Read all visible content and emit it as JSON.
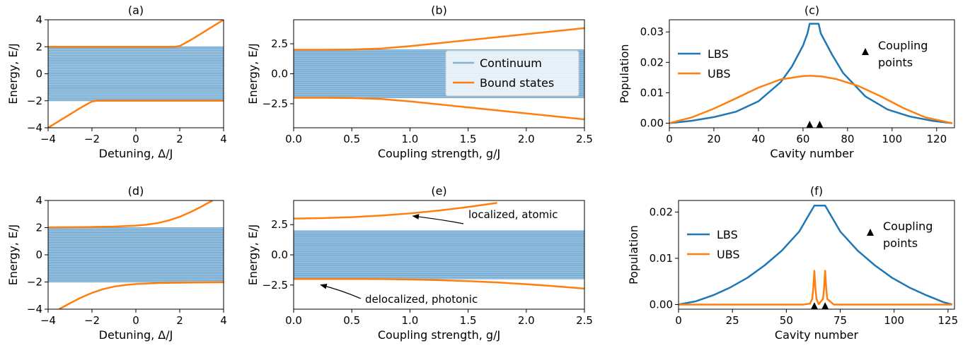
{
  "colors": {
    "continuum": "#1f77b4",
    "bound": "#ff7f0e",
    "lbs": "#1f77b4",
    "ubs": "#ff7f0e",
    "marker": "#000000"
  },
  "chart_data": [
    {
      "id": "a",
      "type": "line",
      "title": "(a)",
      "xlabel": "Detuning, Δ/J",
      "ylabel": "Energy, E/J",
      "xlim": [
        -4,
        4
      ],
      "ylim": [
        -4,
        4
      ],
      "xticks": [
        -4,
        -2,
        0,
        2,
        4
      ],
      "yticks": [
        -4,
        -2,
        0,
        2,
        4
      ],
      "xtick_labels": [
        "−4",
        "−2",
        "0",
        "2",
        "4"
      ],
      "ytick_labels": [
        "−4",
        "−2",
        "0",
        "2",
        "4"
      ],
      "continuum_band": [
        -2,
        2
      ],
      "series": [
        {
          "x": [
            -4,
            -3.5,
            -3,
            -2.6,
            -2.3,
            -2.1,
            -2.0,
            -1.8,
            4
          ],
          "y": [
            -4,
            -3.5,
            -3,
            -2.6,
            -2.32,
            -2.14,
            -2.06,
            -2.0,
            -2.0
          ]
        },
        {
          "x": [
            -4,
            1.8,
            2.0,
            2.1,
            2.3,
            2.6,
            3,
            3.5,
            4
          ],
          "y": [
            2.0,
            2.0,
            2.06,
            2.14,
            2.32,
            2.6,
            3,
            3.5,
            4
          ]
        }
      ]
    },
    {
      "id": "b",
      "type": "line",
      "title": "(b)",
      "xlabel": "Coupling strength, g/J",
      "ylabel": "Energy, E/J",
      "xlim": [
        0,
        2.5
      ],
      "ylim": [
        -4.5,
        4.5
      ],
      "xticks": [
        0,
        0.5,
        1.0,
        1.5,
        2.0,
        2.5
      ],
      "yticks": [
        -2.5,
        0,
        2.5
      ],
      "xtick_labels": [
        "0.0",
        "0.5",
        "1.0",
        "1.5",
        "2.0",
        "2.5"
      ],
      "ytick_labels": [
        "−2.5",
        "0.0",
        "2.5"
      ],
      "continuum_band": [
        -2,
        2
      ],
      "legend": {
        "position": "center-right",
        "entries": [
          "Continuum",
          "Bound states"
        ]
      },
      "series": [
        {
          "name": "Bound states",
          "x": [
            0,
            0.25,
            0.5,
            0.75,
            1.0,
            1.25,
            1.5,
            1.75,
            2.0,
            2.25,
            2.5
          ],
          "y": [
            2.0,
            2.0,
            2.02,
            2.1,
            2.3,
            2.55,
            2.8,
            3.05,
            3.3,
            3.55,
            3.8
          ]
        },
        {
          "name": "Bound states",
          "x": [
            0,
            0.25,
            0.5,
            0.75,
            1.0,
            1.25,
            1.5,
            1.75,
            2.0,
            2.25,
            2.5
          ],
          "y": [
            -2.0,
            -2.0,
            -2.02,
            -2.1,
            -2.3,
            -2.55,
            -2.8,
            -3.05,
            -3.3,
            -3.55,
            -3.8
          ]
        }
      ]
    },
    {
      "id": "c",
      "type": "line",
      "title": "(c)",
      "xlabel": "Cavity number",
      "ylabel": "Population",
      "xlim": [
        0,
        128
      ],
      "ylim": [
        -0.0015,
        0.034
      ],
      "xticks": [
        0,
        20,
        40,
        60,
        80,
        100,
        120
      ],
      "yticks": [
        0,
        0.01,
        0.02,
        0.03
      ],
      "xtick_labels": [
        "0",
        "20",
        "40",
        "60",
        "80",
        "100",
        "120"
      ],
      "ytick_labels": [
        "0.00",
        "0.01",
        "0.02",
        "0.03"
      ],
      "legend": {
        "position": "upper-left",
        "entries": [
          "LBS",
          "UBS"
        ]
      },
      "annotation": {
        "text_lines": [
          "Coupling",
          "points"
        ]
      },
      "markers": {
        "x": [
          63,
          67.5
        ],
        "y": -0.0006
      },
      "series": [
        {
          "name": "LBS",
          "x": [
            0,
            10,
            20,
            30,
            40,
            50,
            55,
            60,
            62,
            63,
            67,
            68,
            73,
            78,
            88,
            98,
            108,
            118,
            127
          ],
          "y": [
            0.0,
            0.0008,
            0.002,
            0.0038,
            0.0072,
            0.0135,
            0.0186,
            0.0255,
            0.0295,
            0.0327,
            0.0327,
            0.0295,
            0.0226,
            0.0165,
            0.0088,
            0.0045,
            0.0022,
            0.0008,
            0.0
          ]
        },
        {
          "name": "UBS",
          "x": [
            0,
            10,
            20,
            30,
            40,
            50,
            60,
            63,
            68,
            75,
            85,
            95,
            105,
            115,
            127
          ],
          "y": [
            0.0,
            0.0019,
            0.0048,
            0.0082,
            0.0117,
            0.0144,
            0.0155,
            0.0156,
            0.0154,
            0.0145,
            0.0122,
            0.0088,
            0.005,
            0.0019,
            0.0
          ]
        }
      ]
    },
    {
      "id": "d",
      "type": "line",
      "title": "(d)",
      "xlabel": "Detuning, Δ/J",
      "ylabel": "Energy, E/J",
      "xlim": [
        -4,
        4
      ],
      "ylim": [
        -4,
        4
      ],
      "xticks": [
        -4,
        -2,
        0,
        2,
        4
      ],
      "yticks": [
        -4,
        -2,
        0,
        2,
        4
      ],
      "xtick_labels": [
        "−4",
        "−2",
        "0",
        "2",
        "4"
      ],
      "ytick_labels": [
        "−4",
        "−2",
        "0",
        "2",
        "4"
      ],
      "continuum_band": [
        -2,
        2
      ],
      "series": [
        {
          "x": [
            -3.5,
            -3,
            -2.5,
            -2,
            -1.5,
            -1,
            -0.5,
            0,
            1,
            2,
            3,
            4
          ],
          "y": [
            -4.0,
            -3.56,
            -3.15,
            -2.8,
            -2.53,
            -2.34,
            -2.22,
            -2.15,
            -2.08,
            -2.05,
            -2.03,
            -2.02
          ]
        },
        {
          "x": [
            -4,
            -3,
            -2,
            -1,
            0,
            0.5,
            1,
            1.5,
            2,
            2.5,
            3,
            3.5
          ],
          "y": [
            2.02,
            2.03,
            2.05,
            2.08,
            2.15,
            2.22,
            2.34,
            2.53,
            2.8,
            3.15,
            3.56,
            4.0
          ]
        }
      ]
    },
    {
      "id": "e",
      "type": "line",
      "title": "(e)",
      "xlabel": "Coupling strength, g/J",
      "ylabel": "Energy, E/J",
      "xlim": [
        0,
        2.5
      ],
      "ylim": [
        -4.5,
        4.5
      ],
      "xticks": [
        0,
        0.5,
        1.0,
        1.5,
        2.0,
        2.5
      ],
      "yticks": [
        -2.5,
        0,
        2.5
      ],
      "xtick_labels": [
        "0.0",
        "0.5",
        "1.0",
        "1.5",
        "2.0",
        "2.5"
      ],
      "ytick_labels": [
        "−2.5",
        "0.0",
        "2.5"
      ],
      "continuum_band": [
        -2,
        2
      ],
      "annotations": [
        {
          "text": "localized, atomic",
          "arrow_to": [
            1.0,
            3.45
          ]
        },
        {
          "text": "delocalized, photonic",
          "arrow_to": [
            0.22,
            -2.25
          ]
        }
      ],
      "series": [
        {
          "x": [
            0,
            0.25,
            0.5,
            0.75,
            1.0,
            1.25,
            1.5,
            1.75
          ],
          "y": [
            3.0,
            3.04,
            3.12,
            3.25,
            3.43,
            3.67,
            3.96,
            4.3
          ]
        },
        {
          "x": [
            0,
            0.25,
            0.5,
            0.75,
            1.0,
            1.25,
            1.5,
            1.75,
            2.0,
            2.25,
            2.5
          ],
          "y": [
            -2.0,
            -2.0,
            -2.0,
            -2.01,
            -2.04,
            -2.1,
            -2.18,
            -2.29,
            -2.43,
            -2.6,
            -2.8
          ]
        }
      ]
    },
    {
      "id": "f",
      "type": "line",
      "title": "(f)",
      "xlabel": "Cavity number",
      "ylabel": "Population",
      "xlim": [
        0,
        128
      ],
      "ylim": [
        -0.001,
        0.0225
      ],
      "xticks": [
        0,
        25,
        50,
        75,
        100,
        125
      ],
      "yticks": [
        0,
        0.01,
        0.02
      ],
      "xtick_labels": [
        "0",
        "25",
        "50",
        "75",
        "100",
        "125"
      ],
      "ytick_labels": [
        "0.00",
        "0.01",
        "0.02"
      ],
      "legend": {
        "position": "upper-left",
        "entries": [
          "LBS",
          "UBS"
        ]
      },
      "annotation": {
        "text_lines": [
          "Coupling",
          "points"
        ]
      },
      "markers": {
        "x": [
          63,
          68
        ],
        "y": -0.0004
      },
      "series": [
        {
          "name": "LBS",
          "x": [
            0,
            8,
            16,
            24,
            32,
            40,
            48,
            56,
            63,
            68,
            75,
            83,
            91,
            99,
            107,
            115,
            123,
            127
          ],
          "y": [
            0.0,
            0.0007,
            0.002,
            0.0037,
            0.0058,
            0.0085,
            0.0117,
            0.0158,
            0.0214,
            0.0214,
            0.0158,
            0.0117,
            0.0085,
            0.0058,
            0.0037,
            0.002,
            0.0005,
            0.0
          ]
        },
        {
          "name": "UBS",
          "x": [
            0,
            58,
            61,
            62,
            62.5,
            63,
            63.5,
            64,
            65,
            67,
            67.5,
            68,
            68.5,
            69,
            72,
            127
          ],
          "y": [
            0,
            0,
            0.0002,
            0.0012,
            0.0035,
            0.0073,
            0.0035,
            0.0012,
            0.0001,
            0.0012,
            0.0035,
            0.0073,
            0.0035,
            0.0012,
            0,
            0
          ]
        }
      ]
    }
  ]
}
